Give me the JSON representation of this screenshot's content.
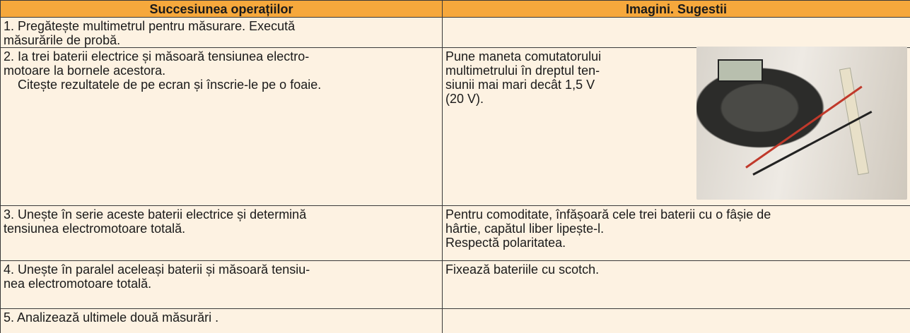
{
  "table": {
    "header": [
      "Succesiunea operațiilor",
      "Imagini. Sugestii"
    ],
    "rows": [
      [
        [
          "1. Pregătește multimetrul pentru măsurare. Execută",
          "măsurările de probă."
        ],
        []
      ],
      [
        [
          "2. Ia trei baterii electrice și măsoară tensiunea electro-",
          "motoare la bornele acestora.",
          "Citește rezultatele de pe ecran și înscrie-le pe o foaie."
        ],
        [
          "Pune maneta comutatorului",
          "multimetrului în dreptul ten-",
          "siunii mai mari  decât 1,5 V",
          "(20 V)."
        ]
      ],
      [
        [
          "3. Unește în serie aceste baterii electrice și determină",
          "tensiunea electromotoare totală."
        ],
        [
          "Pentru comoditate, înfășoară cele trei baterii cu o fâșie de",
          "hârtie, capătul liber lipește-l.",
          "Respectă polaritatea."
        ]
      ],
      [
        [
          "4. Unește în paralel aceleași baterii și măsoară tensiu-",
          "nea electromotoare totală."
        ],
        [
          "Fixează bateriile cu scotch."
        ]
      ],
      [
        [
          "5. Analizează ultimele două măsurări ."
        ],
        []
      ]
    ]
  }
}
